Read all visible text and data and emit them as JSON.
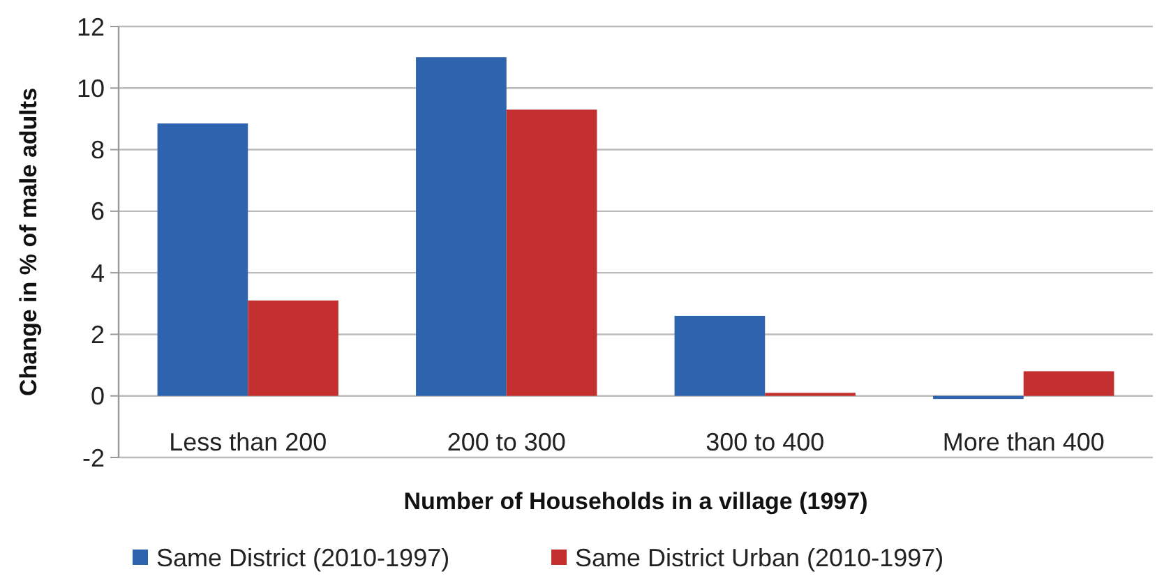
{
  "chart_data": {
    "type": "bar",
    "xlabel": "Number of Households in a village (1997)",
    "ylabel": "Change in % of male adults",
    "categories": [
      "Less than 200",
      "200 to 300",
      "300 to 400",
      "More than 400"
    ],
    "series": [
      {
        "name": "Same District (2010-1997)",
        "color": "#2e64ad",
        "values": [
          8.85,
          11.0,
          2.6,
          -0.1
        ]
      },
      {
        "name": "Same District Urban (2010-1997)",
        "color": "#c4302f",
        "values": [
          3.1,
          9.3,
          0.1,
          0.8
        ]
      }
    ],
    "ylim": [
      -2,
      12
    ],
    "yticks": [
      -2,
      0,
      2,
      4,
      6,
      8,
      10,
      12
    ],
    "grid": "y",
    "legend": "bottom"
  }
}
